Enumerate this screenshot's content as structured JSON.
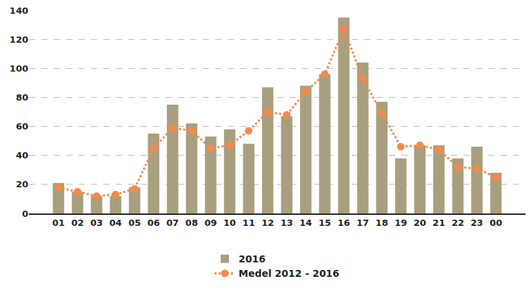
{
  "chart_data": {
    "type": "bar",
    "categories": [
      "01",
      "02",
      "03",
      "04",
      "05",
      "06",
      "07",
      "08",
      "09",
      "10",
      "11",
      "12",
      "13",
      "14",
      "15",
      "16",
      "17",
      "18",
      "19",
      "20",
      "21",
      "22",
      "23",
      "00"
    ],
    "series": [
      {
        "name": "2016",
        "type": "bar",
        "color": "#a89f7f",
        "values": [
          21,
          15,
          12,
          12,
          18,
          55,
          75,
          62,
          53,
          58,
          48,
          87,
          67,
          88,
          96,
          135,
          104,
          77,
          38,
          47,
          47,
          38,
          46,
          28
        ]
      },
      {
        "name": "Medel 2012 - 2016",
        "type": "line",
        "color": "#f58a4b",
        "line_style": "dotted",
        "marker": "circle",
        "values": [
          18,
          15,
          12,
          13,
          17,
          45,
          59,
          57,
          45,
          47,
          57,
          70,
          68,
          84,
          96,
          127,
          93,
          69,
          46,
          47,
          44,
          32,
          31,
          25
        ]
      }
    ],
    "ylim": [
      0,
      140
    ],
    "yticks": [
      0,
      20,
      40,
      60,
      80,
      100,
      120,
      140
    ],
    "grid": true,
    "legend": "bottom"
  }
}
